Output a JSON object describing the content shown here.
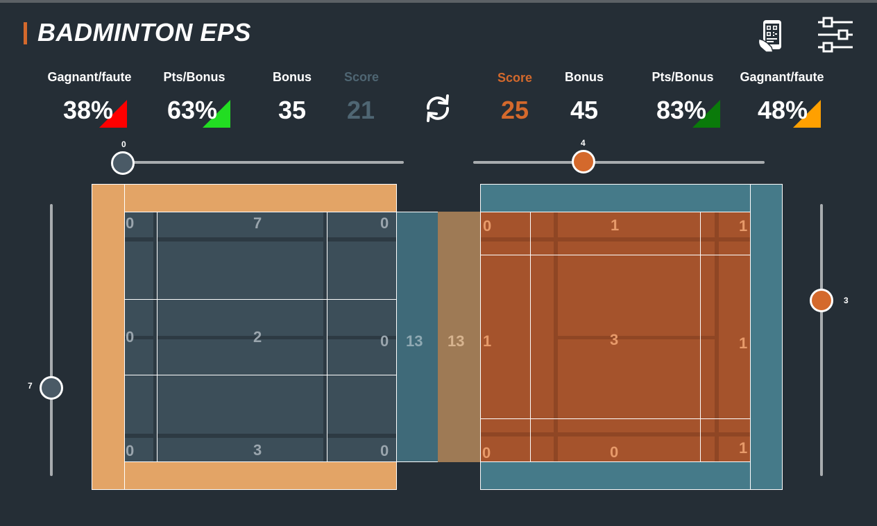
{
  "app": {
    "title": "BADMINTON EPS"
  },
  "icons": {
    "qr": "qr-phone-icon",
    "settings": "sliders-settings-icon",
    "swap": "refresh-swap-icon"
  },
  "colors": {
    "left_team": "#4a5a66",
    "right_team": "#d4692c",
    "red": "#ff0000",
    "green": "#22dd22",
    "dark_green": "#0a7a0a",
    "orange": "#ffa000"
  },
  "left_stats": {
    "gagnant_label": "Gagnant/faute",
    "gagnant_value": "38%",
    "pts_label": "Pts/Bonus",
    "pts_value": "63%",
    "bonus_label": "Bonus",
    "bonus_value": "35",
    "score_label": "Score",
    "score_value": "21"
  },
  "right_stats": {
    "score_label": "Score",
    "score_value": "25",
    "bonus_label": "Bonus",
    "bonus_value": "45",
    "pts_label": "Pts/Bonus",
    "pts_value": "83%",
    "gagnant_label": "Gagnant/faute",
    "gagnant_value": "48%"
  },
  "sliders": {
    "left_h": "0",
    "right_h": "4",
    "left_v": "7",
    "right_v": "3"
  },
  "left_court": {
    "top": [
      "0",
      "7",
      "0"
    ],
    "mid": [
      "0",
      "2",
      "0"
    ],
    "bot": [
      "0",
      "3",
      "0"
    ],
    "net": "13"
  },
  "right_court": {
    "net": "13",
    "top": [
      "0",
      "1",
      "1"
    ],
    "mid": [
      "1",
      "3",
      "1"
    ],
    "bot": [
      "0",
      "0",
      "1"
    ]
  }
}
